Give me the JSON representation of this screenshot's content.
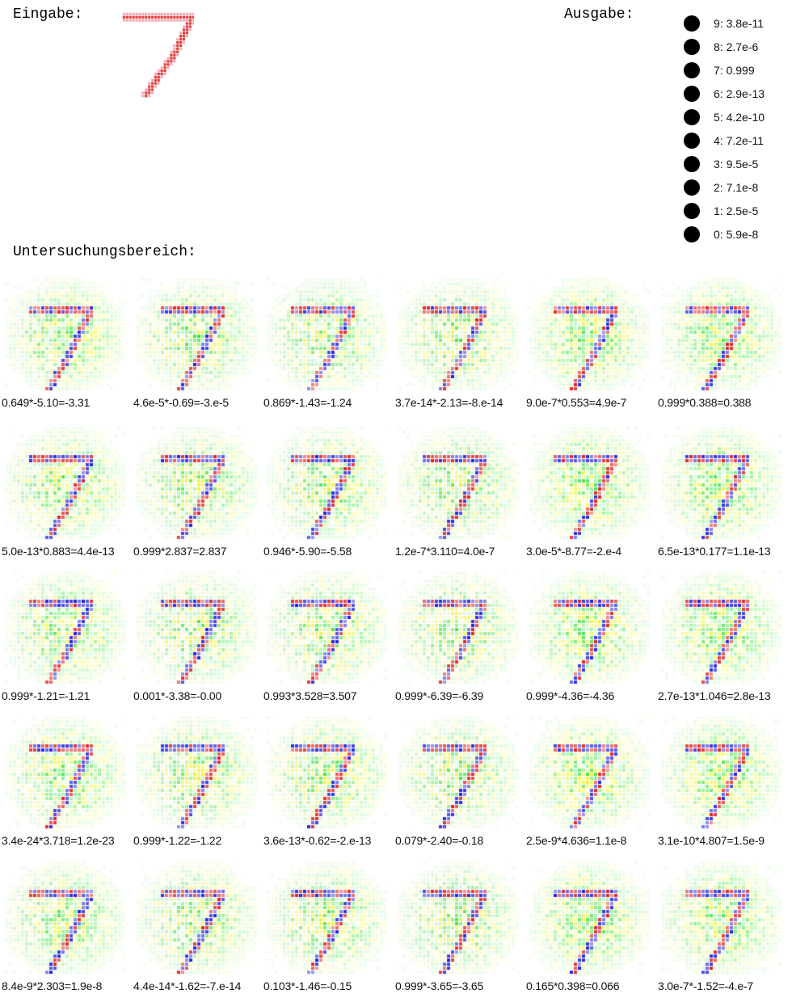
{
  "input_section": {
    "label": "Eingabe:",
    "digit": "7"
  },
  "output_section": {
    "label": "Ausgabe:",
    "items": [
      "9: 3.8e-11",
      "8: 2.7e-6",
      "7: 0.999",
      "6: 2.9e-13",
      "5: 4.2e-10",
      "4: 7.2e-11",
      "3: 9.5e-5",
      "2: 7.1e-8",
      "1: 2.5e-5",
      "0: 5.9e-8"
    ]
  },
  "region_section": {
    "label": "Untersuchungsbereich:",
    "rows": [
      [
        "0.649*-5.10=-3.31",
        "4.6e-5*-0.69=-3.e-5",
        "0.869*-1.43=-1.24",
        "3.7e-14*-2.13=-8.e-14",
        "9.0e-7*0.553=4.9e-7",
        "0.999*0.388=0.388"
      ],
      [
        "5.0e-13*0.883=4.4e-13",
        "0.999*2.837=2.837",
        "0.946*-5.90=-5.58",
        "1.2e-7*3.110=4.0e-7",
        "3.0e-5*-8.77=-2.e-4",
        "6.5e-13*0.177=1.1e-13"
      ],
      [
        "0.999*-1.21=-1.21",
        "0.001*-3.38=-0.00",
        "0.993*3.528=3.507",
        "0.999*-6.39=-6.39",
        "0.999*-4.36=-4.36",
        "2.7e-13*1.046=2.8e-13"
      ],
      [
        "3.4e-24*3.718=1.2e-23",
        "0.999*-1.22=-1.22",
        "3.6e-13*-0.62=-2.e-13",
        "0.079*-2.40=-0.18",
        "2.5e-9*4.636=1.1e-8",
        "3.1e-10*4.807=1.5e-9"
      ],
      [
        "8.4e-9*2.303=1.9e-8",
        "4.4e-14*-1.62=-7.e-14",
        "0.103*-1.46=-0.15",
        "0.999*-3.65=-3.65",
        "0.165*0.398=0.066",
        "3.0e-7*-1.52=-4.e-7"
      ]
    ]
  },
  "colors": {
    "input_stroke": "#e02020",
    "input_halo": "#f4a0a8",
    "positive": "#e02020",
    "negative": "#2020e0",
    "background_a": "#30e030",
    "background_b": "#f0f020",
    "output_dot": "#000000"
  }
}
